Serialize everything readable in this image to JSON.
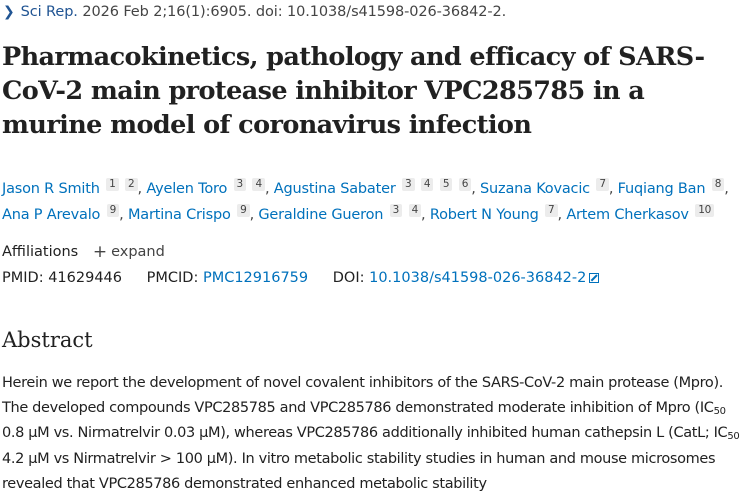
{
  "citation": {
    "chevron_icon": "chevron-right-icon",
    "journal": "Sci Rep.",
    "details": " 2026 Feb 2;16(1):6905. doi: 10.1038/s41598-026-36842-2."
  },
  "title": "Pharmacokinetics, pathology and efficacy of SARS-CoV-2 main protease inhibitor VPC285785 in a murine model of coronavirus infection",
  "authors": [
    {
      "name": "Jason R Smith",
      "affiliations": [
        "1",
        "2"
      ]
    },
    {
      "name": "Ayelen Toro",
      "affiliations": [
        "3",
        "4"
      ]
    },
    {
      "name": "Agustina Sabater",
      "affiliations": [
        "3",
        "4",
        "5",
        "6"
      ]
    },
    {
      "name": "Suzana Kovacic",
      "affiliations": [
        "7"
      ]
    },
    {
      "name": "Fuqiang Ban",
      "affiliations": [
        "8"
      ]
    },
    {
      "name": "Ana P Arevalo",
      "affiliations": [
        "9"
      ]
    },
    {
      "name": "Martina Crispo",
      "affiliations": [
        "9"
      ]
    },
    {
      "name": "Geraldine Gueron",
      "affiliations": [
        "3",
        "4"
      ]
    },
    {
      "name": "Robert N Young",
      "affiliations": [
        "7"
      ]
    },
    {
      "name": "Artem Cherkasov",
      "affiliations": [
        "10"
      ]
    }
  ],
  "affiliations": {
    "label": "Affiliations",
    "expand_label": "expand",
    "expand_icon": "plus-icon"
  },
  "identifiers": {
    "pmid_label": "PMID:",
    "pmid": "41629446",
    "pmcid_label": "PMCID:",
    "pmcid": "PMC12916759",
    "doi_label": "DOI:",
    "doi": "10.1038/s41598-026-36842-2",
    "doi_icon": "external-link-icon"
  },
  "abstract": {
    "heading": "Abstract",
    "segments": [
      {
        "t": "Herein we report the development of novel covalent inhibitors of the SARS-CoV-2 main protease (Mpro). The developed compounds VPC285785 and VPC285786 demonstrated moderate inhibition of Mpro (IC"
      },
      {
        "sub": "50"
      },
      {
        "t": " 0.8 µM vs. Nirmatrelvir 0.03 µM), whereas VPC285786 additionally inhibited human cathepsin L (CatL; IC"
      },
      {
        "sub": "50"
      },
      {
        "t": " 4.2 µM vs Nirmatrelvir > 100 µM). In vitro metabolic stability studies in human and mouse microsomes revealed that VPC285786 demonstrated enhanced metabolic stability"
      }
    ]
  },
  "colors": {
    "link": "#0071bc",
    "citation": "#205493",
    "text": "#212121",
    "sup_bg": "#ececec"
  }
}
